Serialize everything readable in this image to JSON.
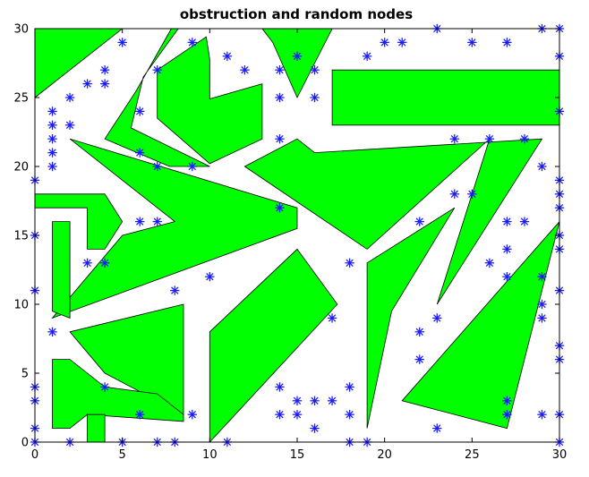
{
  "chart_data": {
    "type": "scatter",
    "title": "obstruction and random nodes",
    "xlabel": "",
    "ylabel": "",
    "xlim": [
      0,
      30
    ],
    "ylim": [
      0,
      30
    ],
    "xticks": [
      0,
      5,
      10,
      15,
      20,
      25,
      30
    ],
    "yticks": [
      0,
      5,
      10,
      15,
      20,
      25,
      30
    ],
    "grid": false,
    "obstacle_color": "#00ff00",
    "obstacle_edge_color": "#000000",
    "node_color": "#1a1aff",
    "node_marker": "asterisk",
    "obstacles": [
      [
        [
          0,
          30
        ],
        [
          5,
          30
        ],
        [
          0,
          25
        ]
      ],
      [
        [
          7.8,
          30
        ],
        [
          5.8,
          25.5
        ],
        [
          4,
          22
        ],
        [
          7.7,
          20
        ],
        [
          10,
          20
        ],
        [
          5.5,
          22.8
        ],
        [
          6.2,
          26.5
        ],
        [
          8.2,
          30
        ]
      ],
      [
        [
          7,
          27
        ],
        [
          7,
          23.5
        ],
        [
          10,
          20.2
        ],
        [
          13,
          22
        ],
        [
          13,
          26
        ],
        [
          10,
          24.9
        ],
        [
          10,
          27.8
        ],
        [
          9.8,
          29.4
        ]
      ],
      [
        [
          13,
          30
        ],
        [
          17,
          30
        ],
        [
          15,
          25
        ],
        [
          13.6,
          29
        ]
      ],
      [
        [
          17,
          27
        ],
        [
          30,
          27
        ],
        [
          30,
          23
        ],
        [
          17,
          23
        ]
      ],
      [
        [
          2,
          22
        ],
        [
          15,
          17
        ],
        [
          15,
          15.5
        ],
        [
          1,
          9
        ],
        [
          5,
          15
        ],
        [
          8,
          16
        ],
        [
          2,
          22
        ]
      ],
      [
        [
          12,
          20
        ],
        [
          15,
          22
        ],
        [
          16,
          21
        ],
        [
          29,
          22
        ],
        [
          23,
          10
        ],
        [
          26,
          22
        ],
        [
          19,
          14
        ],
        [
          12,
          20
        ]
      ],
      [
        [
          0,
          18
        ],
        [
          4,
          18
        ],
        [
          5,
          16
        ],
        [
          4,
          14
        ],
        [
          3,
          14
        ],
        [
          3,
          17
        ],
        [
          0,
          17
        ]
      ],
      [
        [
          1,
          16
        ],
        [
          2,
          16
        ],
        [
          2,
          9
        ],
        [
          1,
          9.5
        ]
      ],
      [
        [
          10,
          0
        ],
        [
          10,
          8
        ],
        [
          15,
          14
        ],
        [
          17.3,
          10
        ],
        [
          10,
          0
        ]
      ],
      [
        [
          19,
          1
        ],
        [
          19,
          13
        ],
        [
          24,
          17
        ],
        [
          20.4,
          9.5
        ],
        [
          19,
          1
        ]
      ],
      [
        [
          2,
          8
        ],
        [
          8.5,
          10
        ],
        [
          8.5,
          2
        ],
        [
          4,
          5
        ],
        [
          2,
          8
        ]
      ],
      [
        [
          1,
          6
        ],
        [
          2,
          6
        ],
        [
          4,
          4
        ],
        [
          7,
          3.5
        ],
        [
          8.5,
          2
        ],
        [
          8.5,
          1.5
        ],
        [
          3,
          2
        ],
        [
          2,
          1
        ],
        [
          1,
          1
        ]
      ],
      [
        [
          3,
          2
        ],
        [
          4,
          2
        ],
        [
          4,
          0
        ],
        [
          3,
          0
        ]
      ],
      [
        [
          21,
          3
        ],
        [
          30,
          16
        ],
        [
          27,
          1
        ],
        [
          21,
          3
        ]
      ]
    ],
    "nodes": {
      "x": [
        0,
        0,
        0,
        0,
        0,
        0,
        0,
        1,
        1,
        1,
        1,
        1,
        1,
        2,
        2,
        2,
        3,
        3,
        4,
        4,
        4,
        4,
        5,
        5,
        6,
        6,
        6,
        6,
        7,
        7,
        7,
        7,
        8,
        8,
        9,
        9,
        9,
        10,
        11,
        11,
        12,
        14,
        14,
        14,
        14,
        14,
        14,
        15,
        15,
        15,
        16,
        16,
        16,
        16,
        17,
        17,
        18,
        18,
        18,
        18,
        19,
        19,
        20,
        21,
        22,
        22,
        22,
        23,
        23,
        23,
        24,
        24,
        25,
        25,
        26,
        26,
        27,
        27,
        27,
        27,
        27,
        27,
        28,
        28,
        29,
        29,
        29,
        29,
        29,
        29,
        30,
        30,
        30,
        30,
        30,
        30,
        30,
        30,
        30,
        30,
        30,
        30,
        30
      ],
      "y": [
        1,
        3,
        4,
        11,
        15,
        19,
        0,
        24,
        23,
        22,
        21,
        20,
        8,
        25,
        23,
        0,
        26,
        13,
        27,
        26,
        13,
        4,
        29,
        0,
        24,
        21,
        16,
        2,
        27,
        20,
        16,
        0,
        11,
        0,
        29,
        20,
        2,
        12,
        28,
        0,
        27,
        22,
        17,
        4,
        2,
        25,
        27,
        28,
        3,
        2,
        27,
        25,
        3,
        1,
        9,
        3,
        13,
        4,
        2,
        0,
        28,
        0,
        29,
        29,
        6,
        16,
        8,
        30,
        9,
        1,
        22,
        18,
        18,
        29,
        22,
        13,
        12,
        29,
        16,
        14,
        3,
        2,
        16,
        22,
        30,
        20,
        12,
        10,
        9,
        2,
        28,
        19,
        18,
        17,
        15,
        14,
        11,
        7,
        6,
        2,
        0,
        24,
        30
      ]
    }
  }
}
